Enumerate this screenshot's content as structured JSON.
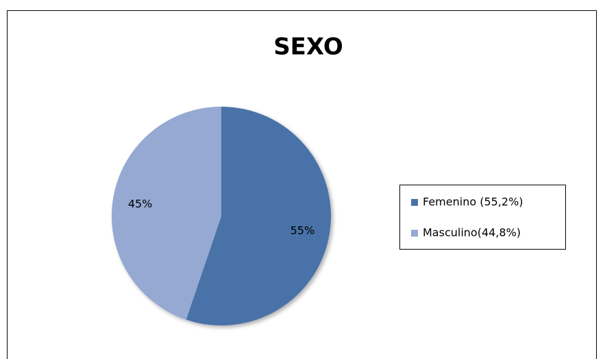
{
  "chart_data": {
    "type": "pie",
    "title": "SEXO",
    "categories": [
      "Femenino (55,2%)",
      "Masculino(44,8%)"
    ],
    "values": [
      55.2,
      44.8
    ],
    "value_labels": [
      "55%",
      "45%"
    ],
    "colors": [
      "#4a72a8",
      "#95a9d2"
    ],
    "legend": "right"
  }
}
